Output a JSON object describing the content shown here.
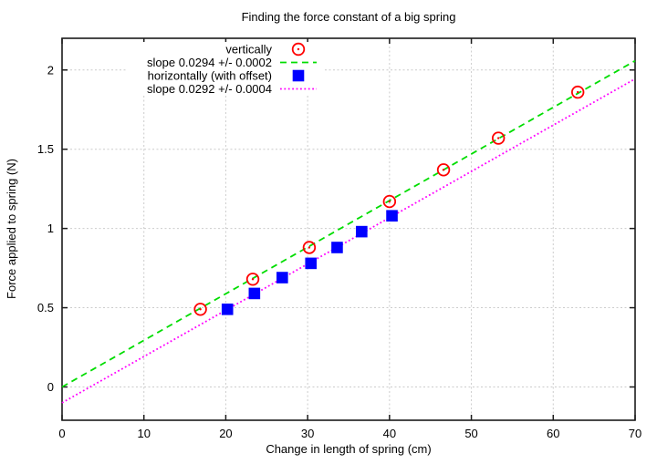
{
  "chart_data": {
    "type": "scatter",
    "title": "Finding the force constant of a big spring",
    "xlabel": "Change in length of spring (cm)",
    "ylabel": "Force applied to spring (N)",
    "xlim": [
      0,
      70
    ],
    "ylim": [
      -0.21,
      2.2
    ],
    "xticks": [
      0,
      10,
      20,
      30,
      40,
      50,
      60,
      70
    ],
    "yticks": [
      0,
      0.5,
      1,
      1.5,
      2
    ],
    "grid": true,
    "legend_position": "top-center",
    "colors": {
      "red_points": "#ff0000",
      "green_line": "#00dd00",
      "blue_points": "#0000ff",
      "magenta_line": "#ff00ff",
      "grid": "#cccccc",
      "border": "#1c1c1c",
      "background": "#ffffff"
    },
    "series": [
      {
        "name": "vertically",
        "kind": "points",
        "marker": "open-circle",
        "color": "#ff0000",
        "x": [
          16.9,
          23.3,
          30.2,
          40.0,
          46.6,
          53.3,
          63.0
        ],
        "y": [
          0.49,
          0.68,
          0.88,
          1.17,
          1.37,
          1.57,
          1.86
        ]
      },
      {
        "name": "slope 0.0294 +/- 0.0002",
        "kind": "line",
        "style": "dashed",
        "color": "#00dd00",
        "slope": 0.0294,
        "intercept": 0.0,
        "x_range": [
          0,
          70
        ]
      },
      {
        "name": "horizontally (with offset)",
        "kind": "points",
        "marker": "filled-square",
        "color": "#0000ff",
        "x": [
          20.2,
          23.5,
          26.9,
          30.4,
          33.6,
          36.6,
          40.3
        ],
        "y": [
          0.49,
          0.59,
          0.69,
          0.78,
          0.88,
          0.98,
          1.08
        ]
      },
      {
        "name": "slope 0.0292 +/- 0.0004",
        "kind": "line",
        "style": "dotted",
        "color": "#ff00ff",
        "slope": 0.0292,
        "intercept": -0.1,
        "x_range": [
          0,
          70
        ]
      }
    ]
  }
}
